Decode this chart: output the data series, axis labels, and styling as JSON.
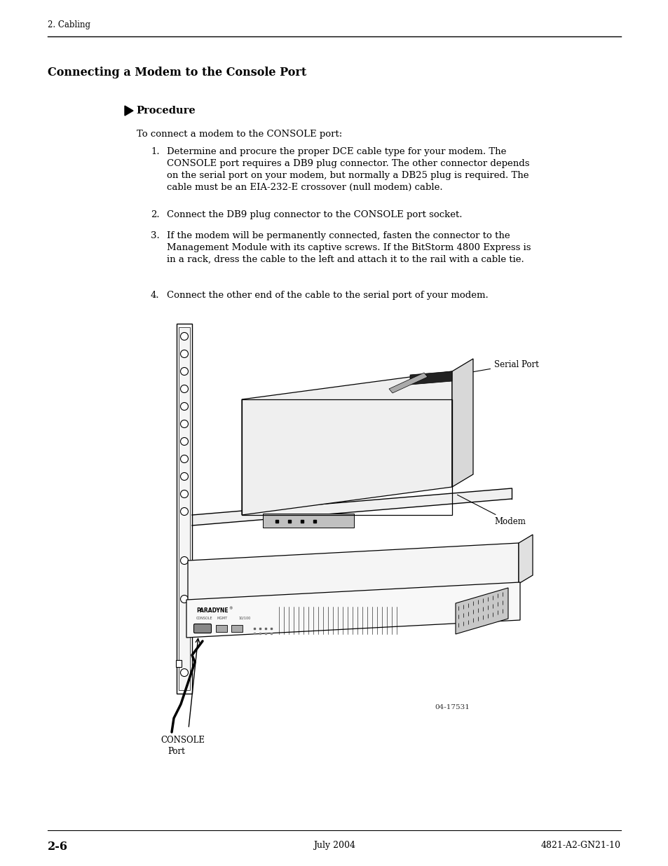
{
  "page_header": "2. Cabling",
  "section_title": "Connecting a Modem to the Console Port",
  "procedure_label": "Procedure",
  "intro_text": "To connect a modem to the CONSOLE port:",
  "step1": "Determine and procure the proper DCE cable type for your modem. The\nCONSOLE port requires a DB9 plug connector. The other connector depends\non the serial port on your modem, but normally a DB25 plug is required. The\ncable must be an EIA-232-E crossover (null modem) cable.",
  "step2": "Connect the DB9 plug connector to the CONSOLE port socket.",
  "step3": "If the modem will be permanently connected, fasten the connector to the\nManagement Module with its captive screws. If the BitStorm 4800 Express is\nin a rack, dress the cable to the left and attach it to the rail with a cable tie.",
  "step4": "Connect the other end of the cable to the serial port of your modem.",
  "footer_left": "2-6",
  "footer_center": "July 2004",
  "footer_right": "4821-A2-GN21-10",
  "bg_color": "#ffffff",
  "text_color": "#000000",
  "figure_number": "04-17531"
}
